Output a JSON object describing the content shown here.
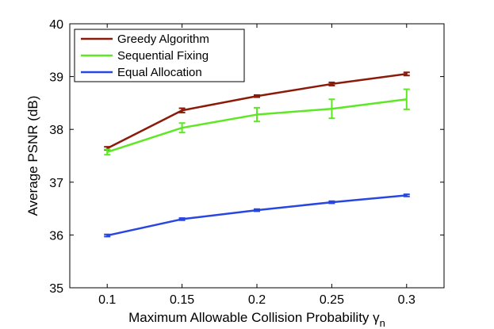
{
  "chart_data": {
    "type": "line",
    "title": "",
    "xlabel": "Maximum Allowable Collision Probability γ",
    "xlabel_subscript": "n",
    "ylabel": "Average PSNR (dB)",
    "x": [
      0.1,
      0.15,
      0.2,
      0.25,
      0.3
    ],
    "x_tick_labels": [
      "0.1",
      "0.15",
      "0.2",
      "0.25",
      "0.3"
    ],
    "y_tick_labels": [
      "35",
      "36",
      "37",
      "38",
      "39",
      "40"
    ],
    "y_ticks": [
      35,
      36,
      37,
      38,
      39,
      40
    ],
    "xlim": [
      0.075,
      0.325
    ],
    "ylim": [
      35,
      40
    ],
    "grid": false,
    "legend_position": "top-left",
    "series": [
      {
        "name": "Greedy Algorithm",
        "color": "#8b1a0a",
        "values": [
          37.64,
          38.36,
          38.63,
          38.86,
          39.05
        ],
        "errors": [
          0.03,
          0.04,
          0.02,
          0.03,
          0.03
        ]
      },
      {
        "name": "Sequential Fixing",
        "color": "#5ee824",
        "values": [
          37.57,
          38.03,
          38.28,
          38.39,
          38.57
        ],
        "errors": [
          0.05,
          0.09,
          0.13,
          0.18,
          0.19
        ]
      },
      {
        "name": "Equal Allocation",
        "color": "#2846e0",
        "values": [
          35.99,
          36.3,
          36.47,
          36.62,
          36.75
        ],
        "errors": [
          0.02,
          0.02,
          0.02,
          0.02,
          0.02
        ]
      }
    ]
  }
}
